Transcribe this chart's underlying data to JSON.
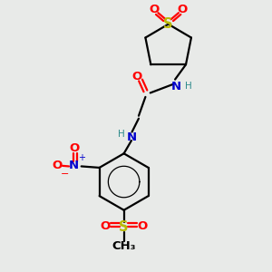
{
  "bg_color": "#e8eae8",
  "bond_color": "#000000",
  "S_color": "#b8b800",
  "O_color": "#ff0000",
  "N_color": "#0000cc",
  "H_color": "#2e8b8b",
  "figsize": [
    3.0,
    3.0
  ],
  "dpi": 100,
  "xlim": [
    0,
    10
  ],
  "ylim": [
    0,
    10
  ]
}
